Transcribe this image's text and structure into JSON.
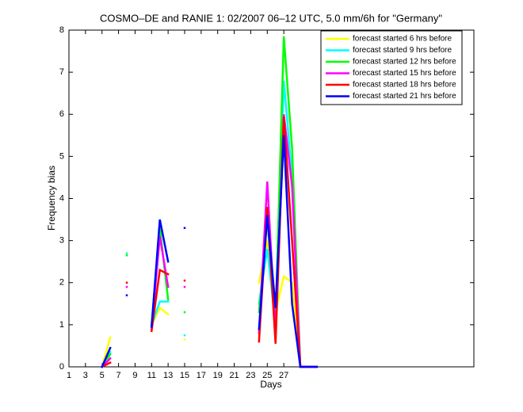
{
  "chart_data": {
    "type": "line",
    "title": "COSMO–DE and RANIE 1: 02/2007 06–12 UTC, 5.0 mm/6h for \"Germany\"",
    "x_label": "Days",
    "y_label": "Frequency bias",
    "x": [
      1,
      2,
      3,
      4,
      5,
      6,
      7,
      8,
      9,
      10,
      11,
      12,
      13,
      14,
      15,
      16,
      17,
      18,
      19,
      20,
      21,
      22,
      23,
      24,
      25,
      26,
      27,
      28,
      29,
      30,
      31
    ],
    "series": [
      {
        "name": "forecast started 6 hrs before",
        "color": "#ffff00",
        "values": [
          null,
          null,
          null,
          null,
          0,
          0.7,
          null,
          2.7,
          null,
          null,
          1.0,
          1.4,
          1.25,
          null,
          0.65,
          null,
          null,
          null,
          null,
          null,
          null,
          null,
          null,
          2.0,
          3.0,
          1.3,
          2.15,
          2.0,
          0,
          0,
          0
        ]
      },
      {
        "name": "forecast started 9 hrs before",
        "color": "#00ffff",
        "values": [
          null,
          null,
          null,
          null,
          0,
          0.35,
          null,
          2.7,
          null,
          null,
          1.0,
          1.55,
          1.55,
          null,
          0.75,
          null,
          null,
          null,
          null,
          null,
          null,
          null,
          null,
          1.5,
          2.8,
          1.0,
          6.8,
          4.5,
          0,
          0,
          0
        ]
      },
      {
        "name": "forecast started 12 hrs before",
        "color": "#00ff00",
        "values": [
          null,
          null,
          null,
          null,
          0,
          0.3,
          null,
          2.65,
          null,
          null,
          1.0,
          3.3,
          1.6,
          null,
          1.3,
          null,
          null,
          null,
          null,
          null,
          null,
          null,
          null,
          1.3,
          3.5,
          1.1,
          7.85,
          5.2,
          0,
          0,
          0
        ]
      },
      {
        "name": "forecast started 15 hrs before",
        "color": "#ff00ff",
        "values": [
          null,
          null,
          null,
          null,
          0,
          0.2,
          null,
          1.9,
          null,
          null,
          0.9,
          3.1,
          1.9,
          null,
          1.9,
          null,
          null,
          null,
          null,
          null,
          null,
          null,
          null,
          0.8,
          4.4,
          0.8,
          6.0,
          4.3,
          0,
          0,
          0
        ]
      },
      {
        "name": "forecast started 18 hrs before",
        "color": "#ff0000",
        "values": [
          null,
          null,
          null,
          null,
          0,
          0.1,
          null,
          2.0,
          null,
          null,
          0.85,
          2.3,
          2.2,
          null,
          2.05,
          null,
          null,
          null,
          null,
          null,
          null,
          null,
          null,
          0.6,
          3.8,
          0.55,
          5.95,
          3.0,
          0,
          0,
          0
        ]
      },
      {
        "name": "forecast started 21 hrs before",
        "color": "#0000ff",
        "values": [
          null,
          null,
          null,
          null,
          0,
          0.45,
          null,
          1.7,
          null,
          null,
          0.95,
          3.5,
          2.5,
          null,
          3.3,
          null,
          null,
          null,
          null,
          null,
          null,
          null,
          null,
          0.9,
          3.6,
          1.4,
          5.5,
          1.5,
          0,
          0,
          0
        ]
      }
    ],
    "xlim": [
      1,
      50
    ],
    "ylim": [
      0,
      8
    ],
    "xticks": [
      1,
      3,
      5,
      7,
      9,
      11,
      13,
      15,
      17,
      19,
      21,
      23,
      25,
      27
    ],
    "yticks": [
      0,
      1,
      2,
      3,
      4,
      5,
      6,
      7,
      8
    ],
    "legend": "top-right"
  }
}
